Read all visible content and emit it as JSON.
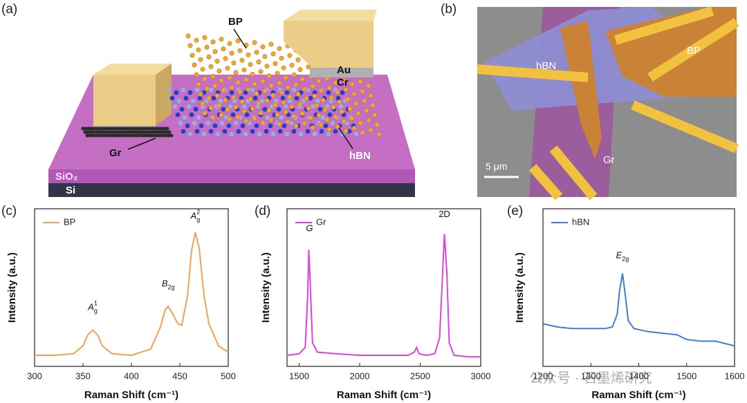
{
  "panel_labels": [
    "(a)",
    "(b)",
    "(c)",
    "(d)",
    "(e)"
  ],
  "schematic": {
    "bp": "BP",
    "au": "Au",
    "cr": "Cr",
    "gr": "Gr",
    "hbn": "hBN",
    "sio2": "SiO₂",
    "si": "Si"
  },
  "micrograph": {
    "hbn": "hBN",
    "bp": "BP",
    "gr": "Gr",
    "scale_bar": "5 μm"
  },
  "watermark": "公众号 · 石墨烯研究",
  "chart_data": [
    {
      "type": "line",
      "xlabel": "Raman Shift (cm⁻¹)",
      "ylabel": "Intensity (a.u.)",
      "x": [
        300,
        320,
        340,
        350,
        355,
        360,
        365,
        370,
        380,
        400,
        420,
        430,
        435,
        438,
        442,
        448,
        452,
        458,
        462,
        466,
        470,
        475,
        480,
        490,
        500
      ],
      "series": [
        {
          "name": "BP",
          "color": "#f0a050",
          "values": [
            0.07,
            0.07,
            0.08,
            0.13,
            0.2,
            0.23,
            0.2,
            0.13,
            0.08,
            0.07,
            0.11,
            0.25,
            0.36,
            0.38,
            0.34,
            0.27,
            0.26,
            0.45,
            0.73,
            0.85,
            0.75,
            0.45,
            0.27,
            0.13,
            0.09
          ]
        }
      ],
      "xlim": [
        300,
        500
      ],
      "xticks": [
        300,
        350,
        400,
        450,
        500
      ],
      "ylim": [
        0,
        1
      ],
      "legend": "upper left",
      "annotations": [
        {
          "text": "A",
          "sub": "g",
          "sup": "1"
        },
        {
          "text": "B",
          "sub": "2g"
        },
        {
          "text": "A",
          "sub": "g",
          "sup": "2"
        }
      ]
    },
    {
      "type": "line",
      "xlabel": "Raman Shift (cm⁻¹)",
      "ylabel": "Intensity (a.u.)",
      "x": [
        1400,
        1500,
        1550,
        1570,
        1580,
        1590,
        1610,
        1650,
        1800,
        2000,
        2200,
        2400,
        2450,
        2470,
        2490,
        2550,
        2620,
        2660,
        2680,
        2700,
        2720,
        2740,
        2780,
        2900,
        3000
      ],
      "series": [
        {
          "name": "Gr",
          "color": "#e040e0",
          "values": [
            0.07,
            0.08,
            0.12,
            0.45,
            0.74,
            0.55,
            0.15,
            0.09,
            0.08,
            0.07,
            0.07,
            0.07,
            0.09,
            0.12,
            0.08,
            0.07,
            0.08,
            0.18,
            0.5,
            0.84,
            0.6,
            0.15,
            0.07,
            0.06,
            0.06
          ]
        }
      ],
      "xlim": [
        1400,
        3000
      ],
      "xticks": [
        1500,
        2000,
        2500,
        3000
      ],
      "ylim": [
        0,
        1
      ],
      "legend": "upper left",
      "annotations": [
        {
          "text": "G"
        },
        {
          "text": "2D",
          "italic": false
        }
      ]
    },
    {
      "type": "line",
      "xlabel": "Raman Shift (cm⁻¹)",
      "ylabel": "Intensity (a.u.)",
      "x": [
        1200,
        1230,
        1260,
        1300,
        1330,
        1345,
        1355,
        1360,
        1366,
        1372,
        1378,
        1390,
        1420,
        1450,
        1480,
        1500,
        1530,
        1560,
        1600
      ],
      "series": [
        {
          "name": "hBN",
          "color": "#3a7fd0",
          "values": [
            0.27,
            0.25,
            0.24,
            0.24,
            0.24,
            0.25,
            0.33,
            0.48,
            0.59,
            0.45,
            0.29,
            0.24,
            0.22,
            0.21,
            0.2,
            0.17,
            0.16,
            0.16,
            0.13
          ]
        }
      ],
      "xlim": [
        1200,
        1600
      ],
      "xticks": [
        1200,
        1300,
        1400,
        1500,
        1600
      ],
      "ylim": [
        0,
        1
      ],
      "legend": "upper left",
      "annotations": [
        {
          "text": "E",
          "sub": "2g"
        }
      ]
    }
  ]
}
